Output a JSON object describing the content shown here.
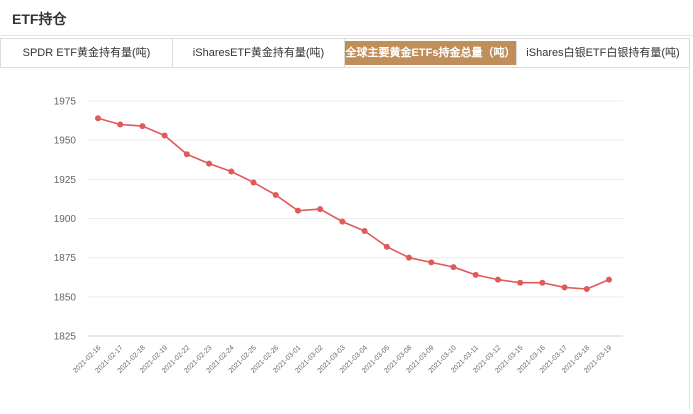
{
  "header": {
    "title": "ETF持仓"
  },
  "tabs": [
    {
      "label": "SPDR ETF黄金持有量(吨)",
      "active": false
    },
    {
      "label": "iSharesETF黄金持有量(吨)",
      "active": false
    },
    {
      "label": "全球主要黄金ETFs持金总量（吨）",
      "active": true
    },
    {
      "label": "iShares白银ETF白银持有量(吨)",
      "active": false
    }
  ],
  "colors": {
    "accent": "#c08e58",
    "line": "#e05a5a",
    "grid": "#ececec",
    "axis_text": "#666666"
  },
  "chart_data": {
    "type": "line",
    "title": "",
    "xlabel": "",
    "ylabel": "",
    "ylim": [
      1825,
      1975
    ],
    "yticks": [
      1975,
      1950,
      1925,
      1900,
      1875,
      1850,
      1825
    ],
    "grid": true,
    "categories": [
      "2021-02-16",
      "2021-02-17",
      "2021-02-18",
      "2021-02-19",
      "2021-02-22",
      "2021-02-23",
      "2021-02-24",
      "2021-02-25",
      "2021-02-26",
      "2021-03-01",
      "2021-03-02",
      "2021-03-03",
      "2021-03-04",
      "2021-03-05",
      "2021-03-08",
      "2021-03-09",
      "2021-03-10",
      "2021-03-11",
      "2021-03-12",
      "2021-03-15",
      "2021-03-16",
      "2021-03-17",
      "2021-03-18",
      "2021-03-19"
    ],
    "series": [
      {
        "values": [
          1964,
          1960,
          1959,
          1953,
          1941,
          1935,
          1930,
          1923,
          1915,
          1905,
          1906,
          1898,
          1892,
          1882,
          1875,
          1872,
          1869,
          1864,
          1861,
          1859,
          1859,
          1856,
          1855,
          1861
        ]
      }
    ]
  }
}
